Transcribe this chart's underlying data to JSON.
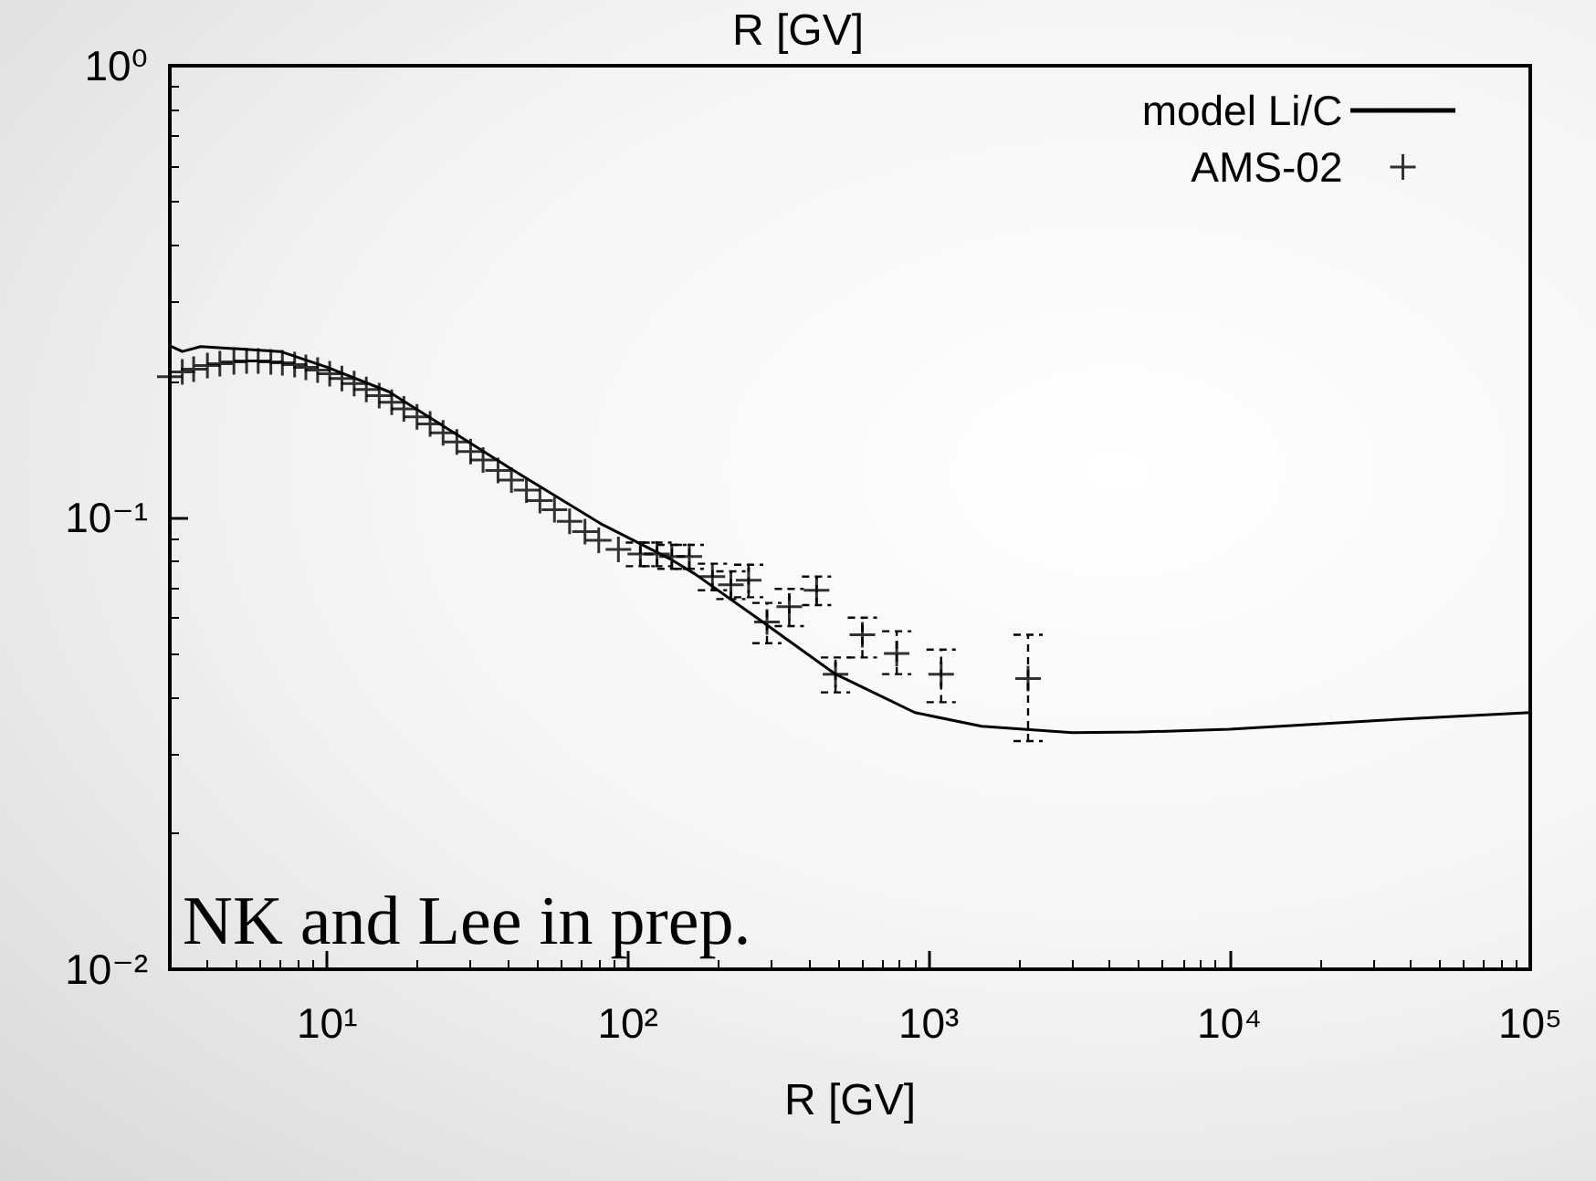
{
  "chart_data": {
    "type": "line",
    "title": "R [GV]",
    "xlabel": "R [GV]",
    "log": "xy",
    "xlim": [
      3,
      100000
    ],
    "ylim": [
      0.01,
      1
    ],
    "xticks": [
      {
        "value": 10,
        "label": "10¹"
      },
      {
        "value": 100,
        "label": "10²"
      },
      {
        "value": 1000,
        "label": "10³"
      },
      {
        "value": 10000,
        "label": "10⁴"
      },
      {
        "value": 100000,
        "label": "10⁵"
      }
    ],
    "yticks": [
      {
        "value": 0.01,
        "label": "10⁻²"
      },
      {
        "value": 0.1,
        "label": "10⁻¹"
      },
      {
        "value": 1,
        "label": "10⁰"
      }
    ],
    "grid": false,
    "legend": "top right",
    "annotations": [
      "NK and Lee in prep."
    ],
    "series": [
      {
        "name": "model Li/C",
        "type": "line",
        "color": "#000000",
        "marker": "none",
        "line_style": "solid",
        "x": [
          3,
          3.3,
          3.8,
          7,
          10,
          16,
          41,
          81,
          138,
          167,
          278,
          490,
          900,
          1500,
          3000,
          5000,
          10000,
          30000,
          100000
        ],
        "values": [
          0.24,
          0.233,
          0.239,
          0.233,
          0.215,
          0.19,
          0.128,
          0.097,
          0.081,
          0.075,
          0.059,
          0.045,
          0.037,
          0.0345,
          0.0334,
          0.0335,
          0.034,
          0.0355,
          0.037
        ]
      },
      {
        "name": "AMS-02",
        "type": "scatter",
        "color": "#000000",
        "marker": "cross",
        "line_style": "dashed",
        "x": [
          3.0,
          3.3,
          3.6,
          4.0,
          4.4,
          4.9,
          5.4,
          5.9,
          6.5,
          7.1,
          7.8,
          8.5,
          9.3,
          10.2,
          11.2,
          12.3,
          13.5,
          14.9,
          16.4,
          18.0,
          19.9,
          22.0,
          24.3,
          27,
          30,
          33,
          37,
          41,
          46,
          51,
          57,
          64,
          72,
          80,
          93,
          110,
          125,
          140,
          160,
          191,
          220,
          252,
          290,
          344,
          424,
          490,
          602,
          783,
          1100,
          2140
        ],
        "values": [
          0.205,
          0.21,
          0.213,
          0.217,
          0.219,
          0.221,
          0.222,
          0.222,
          0.221,
          0.22,
          0.218,
          0.215,
          0.212,
          0.208,
          0.203,
          0.198,
          0.192,
          0.186,
          0.18,
          0.174,
          0.167,
          0.161,
          0.154,
          0.147,
          0.14,
          0.134,
          0.127,
          0.121,
          0.115,
          0.109,
          0.104,
          0.098,
          0.093,
          0.089,
          0.085,
          0.083,
          0.083,
          0.082,
          0.082,
          0.074,
          0.071,
          0.0726,
          0.0587,
          0.0635,
          0.069,
          0.045,
          0.055,
          0.05,
          0.045,
          0.044
        ],
        "errors": [
          null,
          null,
          null,
          null,
          null,
          null,
          null,
          null,
          null,
          null,
          null,
          null,
          null,
          null,
          null,
          null,
          null,
          null,
          null,
          null,
          null,
          null,
          null,
          null,
          null,
          null,
          null,
          null,
          null,
          null,
          null,
          null,
          null,
          null,
          null,
          0.005,
          0.005,
          0.005,
          0.005,
          0.005,
          0.005,
          0.006,
          0.006,
          0.006,
          [
            0.064,
            0.074
          ],
          [
            0.041,
            0.049
          ],
          [
            0.049,
            0.06
          ],
          [
            0.045,
            0.056
          ],
          [
            0.039,
            0.051
          ],
          [
            0.032,
            0.055
          ]
        ]
      }
    ]
  }
}
